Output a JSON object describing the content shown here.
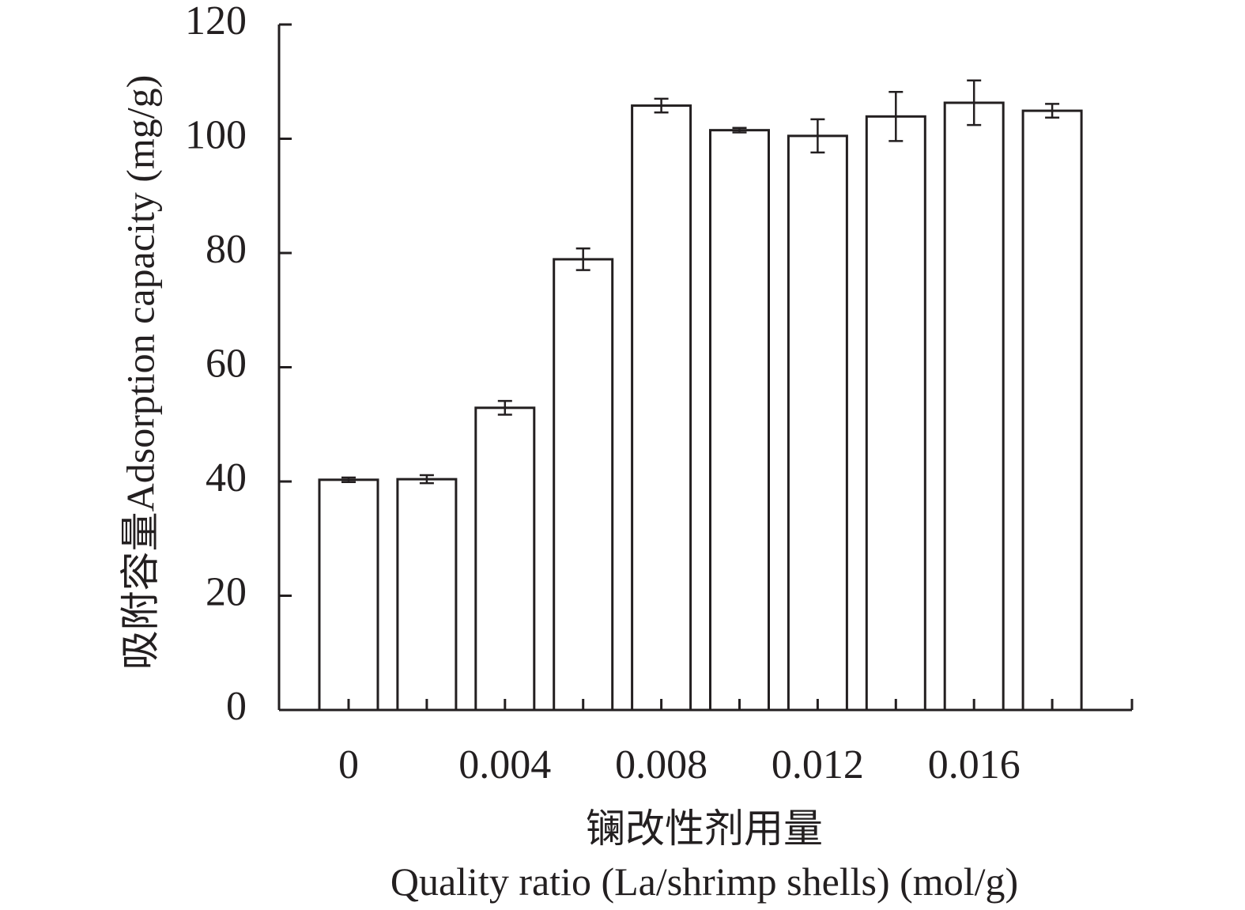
{
  "chart_data": {
    "type": "bar",
    "x": [
      0,
      0.002,
      0.004,
      0.006,
      0.008,
      0.01,
      0.012,
      0.014,
      0.016,
      0.018
    ],
    "values": [
      40.3,
      40.4,
      52.9,
      78.9,
      105.8,
      101.5,
      100.5,
      103.9,
      106.3,
      104.9
    ],
    "errors": [
      0.4,
      0.7,
      1.2,
      1.9,
      1.2,
      0.4,
      2.9,
      4.3,
      3.9,
      1.2
    ],
    "xticks": [
      0,
      0.004,
      0.008,
      0.012,
      0.016
    ],
    "xtick_labels": [
      "0",
      "0.004",
      "0.008",
      "0.012",
      "0.016"
    ],
    "yticks": [
      0,
      20,
      40,
      60,
      80,
      100,
      120
    ],
    "ytick_labels": [
      "0",
      "20",
      "40",
      "60",
      "80",
      "100",
      "120"
    ],
    "ylim": [
      0,
      120
    ],
    "xlabel_line1": "镧改性剂用量",
    "xlabel_line2": "Quality ratio (La/shrimp shells) (mol/g)",
    "ylabel": "吸附容量Adsorption capacity (mg/g)",
    "grid": false,
    "bar_fill": "#ffffff",
    "line_color": "#231f20"
  }
}
